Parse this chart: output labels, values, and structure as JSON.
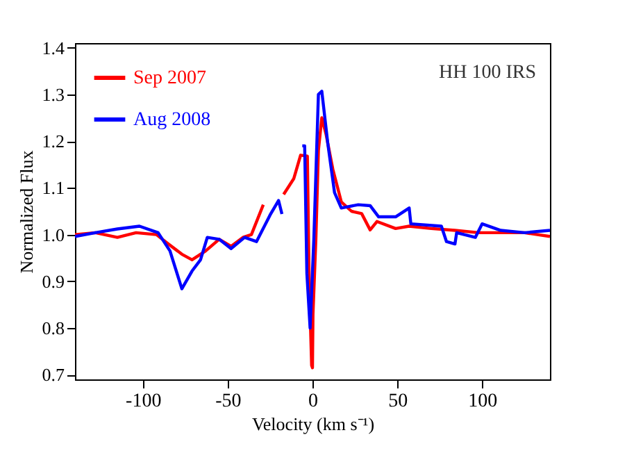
{
  "chart_data": {
    "type": "line",
    "xlabel": "Velocity (km s⁻¹)",
    "ylabel": "Normalized Flux",
    "annotations": [
      "HH 100 IRS"
    ],
    "xlim": [
      -140,
      140
    ],
    "xticks": [
      -100,
      -50,
      0,
      50,
      100
    ],
    "ylim": [
      0.69,
      1.41
    ],
    "yticks": [
      0.7,
      0.8,
      0.9,
      {
        "value": 1,
        "label": "1.0"
      },
      1.1,
      1.2,
      1.3,
      1.4
    ],
    "grid": false,
    "legend": "top left",
    "line_style": "solid",
    "marker": "none",
    "series": [
      {
        "name": "Sep 2007",
        "color": "#ff0000",
        "x": [
          -140,
          -128,
          -115,
          -104,
          -92,
          -85,
          -77,
          -71,
          -63,
          -55,
          -48,
          -41,
          -36,
          -29,
          -23,
          -17,
          -11,
          -7,
          -3,
          -2,
          -0.5,
          0,
          0.3,
          2,
          3.5,
          5.5,
          8,
          12,
          17,
          23,
          29,
          34,
          38,
          49,
          57,
          70,
          84,
          98,
          111,
          125,
          140
        ],
        "values": [
          1.0,
          1.004,
          0.994,
          1.004,
          1.0,
          0.98,
          0.958,
          0.946,
          0.965,
          0.99,
          0.975,
          0.994,
          1.0,
          1.064,
          null,
          1.086,
          1.12,
          1.17,
          1.168,
          0.91,
          0.72,
          0.715,
          0.83,
          0.99,
          1.18,
          1.25,
          1.215,
          1.14,
          1.07,
          1.05,
          1.045,
          1.01,
          1.028,
          1.013,
          1.018,
          1.013,
          1.009,
          1.004,
          1.004,
          1.004,
          0.996
        ]
      },
      {
        "name": "Aug 2008",
        "color": "#0000ff",
        "x": [
          -140,
          -128,
          -115,
          -102,
          -91,
          -84,
          -77,
          -71,
          -66,
          -62,
          -55,
          -48,
          -40,
          -33,
          -25,
          -20,
          -18,
          -12,
          -6,
          -4.6,
          -3.3,
          -1.4,
          0.8,
          3.5,
          5.5,
          9,
          13,
          17,
          27,
          34,
          39,
          49,
          57,
          58,
          76,
          79,
          84,
          85,
          96,
          100,
          111,
          125,
          140
        ],
        "values": [
          0.996,
          1.004,
          1.012,
          1.018,
          1.004,
          0.965,
          0.884,
          0.922,
          0.946,
          0.994,
          0.99,
          0.97,
          0.994,
          0.985,
          1.042,
          1.073,
          1.044,
          null,
          1.19,
          1.19,
          0.917,
          0.8,
          0.99,
          1.3,
          1.307,
          1.196,
          1.09,
          1.057,
          1.064,
          1.062,
          1.038,
          1.038,
          1.057,
          1.023,
          1.018,
          0.985,
          0.98,
          1.004,
          0.994,
          1.023,
          1.009,
          1.004,
          1.009
        ]
      }
    ]
  }
}
